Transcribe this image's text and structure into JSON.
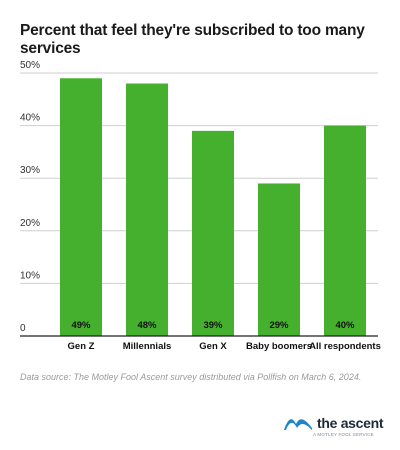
{
  "title": "Percent that feel they're subscribed to too many services",
  "source": "Data source: The Motley Fool Ascent survey distributed via Pollfish on March 6, 2024.",
  "brand": {
    "name": "the ascent",
    "tagline": "A MOTLEY FOOL SERVICE",
    "logo_icon": "mountain-wave-icon",
    "logo_color": "#1e86c8"
  },
  "chart_data": {
    "type": "bar",
    "categories": [
      "Gen Z",
      "Millennials",
      "Gen X",
      "Baby boomers",
      "All respondents"
    ],
    "values": [
      49,
      48,
      39,
      29,
      40
    ],
    "data_labels": [
      "49%",
      "48%",
      "39%",
      "29%",
      "40%"
    ],
    "ylim": [
      0,
      50
    ],
    "yticks": [
      0,
      10,
      20,
      30,
      40,
      50
    ],
    "ytick_labels": [
      "0",
      "10%",
      "20%",
      "30%",
      "40%",
      "50%"
    ],
    "grid": true,
    "bar_color": "#44b02e",
    "xlabel": "",
    "ylabel": ""
  }
}
